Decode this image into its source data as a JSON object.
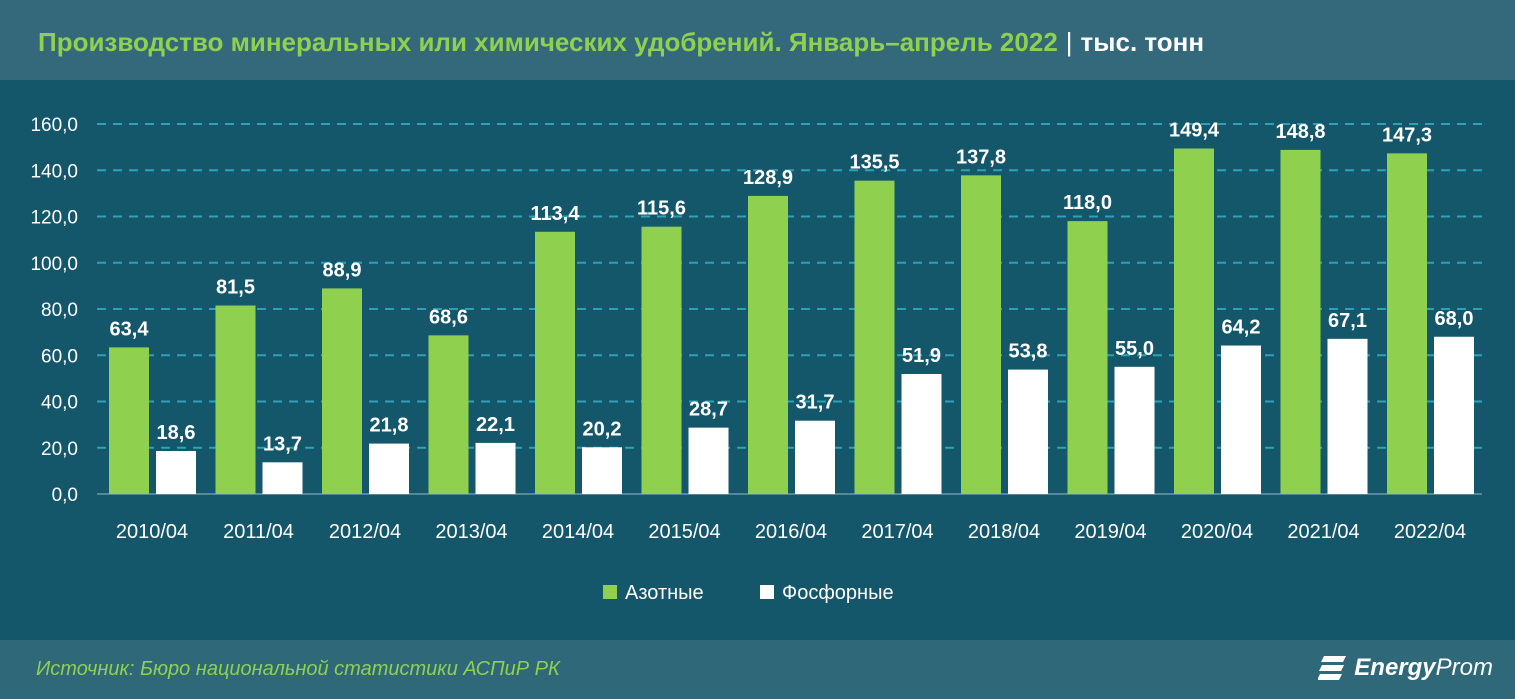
{
  "title": "Производство минеральных или химических удобрений. Январь–апрель 2022",
  "unit": "тыс. тонн",
  "source": "Источник: Бюро национальной статистики АСПиР РК",
  "logo": "EnergyProm",
  "chart_data": {
    "type": "bar",
    "categories": [
      "2010/04",
      "2011/04",
      "2012/04",
      "2013/04",
      "2014/04",
      "2015/04",
      "2016/04",
      "2017/04",
      "2018/04",
      "2019/04",
      "2020/04",
      "2021/04",
      "2022/04"
    ],
    "series": [
      {
        "name": "Азотные",
        "color": "#8fd14f",
        "values": [
          63.4,
          81.5,
          88.9,
          68.6,
          113.4,
          115.6,
          128.9,
          135.5,
          137.8,
          118.0,
          149.4,
          148.8,
          147.3
        ]
      },
      {
        "name": "Фосфорные",
        "color": "#ffffff",
        "values": [
          18.6,
          13.7,
          21.8,
          22.1,
          20.2,
          28.7,
          31.7,
          51.9,
          53.8,
          55.0,
          64.2,
          67.1,
          68.0
        ]
      }
    ],
    "yticks": [
      "0,0",
      "20,0",
      "40,0",
      "60,0",
      "80,0",
      "100,0",
      "120,0",
      "140,0",
      "160,0"
    ],
    "ylim": [
      0,
      160
    ],
    "grid": true,
    "legend": "bottom"
  }
}
